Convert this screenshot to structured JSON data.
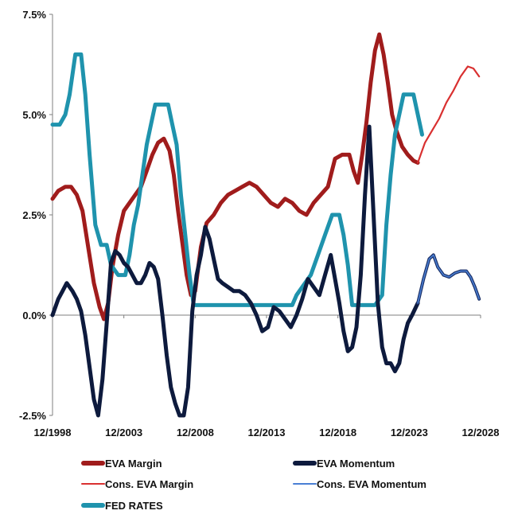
{
  "chart_data": {
    "type": "line",
    "title": "",
    "xlabel": "",
    "ylabel": "",
    "xlim": [
      1998.9,
      2028.9
    ],
    "ylim": [
      -2.5,
      7.5
    ],
    "x_ticks": [
      {
        "value": 1998.9,
        "label": "12/1998"
      },
      {
        "value": 2003.9,
        "label": "12/2003"
      },
      {
        "value": 2008.9,
        "label": "12/2008"
      },
      {
        "value": 2013.9,
        "label": "12/2013"
      },
      {
        "value": 2018.9,
        "label": "12/2018"
      },
      {
        "value": 2023.9,
        "label": "12/2023"
      },
      {
        "value": 2028.9,
        "label": "12/2028"
      }
    ],
    "y_ticks": [
      {
        "value": 7.5,
        "label": "7.5%"
      },
      {
        "value": 5.0,
        "label": "5.0%"
      },
      {
        "value": 2.5,
        "label": "2.5%"
      },
      {
        "value": 0.0,
        "label": "0.0%"
      },
      {
        "value": -2.5,
        "label": "-2.5%"
      }
    ],
    "series": [
      {
        "name": "EVA Margin",
        "color": "#a01c1c",
        "weight": "thick",
        "x": [
          1998.9,
          1999.3,
          1999.8,
          2000.2,
          2000.6,
          2001.0,
          2001.4,
          2001.8,
          2002.2,
          2002.5,
          2002.8,
          2003.1,
          2003.5,
          2003.9,
          2004.3,
          2004.7,
          2005.1,
          2005.5,
          2005.9,
          2006.3,
          2006.7,
          2007.1,
          2007.4,
          2007.7,
          2008.0,
          2008.3,
          2008.6,
          2008.9,
          2009.3,
          2009.7,
          2010.2,
          2010.7,
          2011.2,
          2011.7,
          2012.2,
          2012.7,
          2013.2,
          2013.7,
          2014.2,
          2014.7,
          2015.2,
          2015.7,
          2016.2,
          2016.7,
          2017.2,
          2017.7,
          2018.2,
          2018.7,
          2019.2,
          2019.7,
          2020.0,
          2020.3,
          2020.6,
          2020.9,
          2021.2,
          2021.5,
          2021.8,
          2022.1,
          2022.4,
          2022.7,
          2023.0,
          2023.4,
          2023.8,
          2024.2,
          2024.5
        ],
        "y": [
          2.9,
          3.1,
          3.2,
          3.2,
          3.0,
          2.6,
          1.7,
          0.8,
          0.2,
          -0.1,
          0.3,
          1.2,
          2.0,
          2.6,
          2.8,
          3.0,
          3.2,
          3.6,
          4.0,
          4.3,
          4.4,
          4.1,
          3.5,
          2.6,
          1.8,
          1.0,
          0.5,
          0.6,
          1.7,
          2.3,
          2.5,
          2.8,
          3.0,
          3.1,
          3.2,
          3.3,
          3.2,
          3.0,
          2.8,
          2.7,
          2.9,
          2.8,
          2.6,
          2.5,
          2.8,
          3.0,
          3.2,
          3.9,
          4.0,
          4.0,
          3.6,
          3.3,
          4.0,
          4.8,
          5.8,
          6.6,
          7.0,
          6.5,
          5.8,
          5.0,
          4.6,
          4.2,
          4.0,
          3.85,
          3.8
        ]
      },
      {
        "name": "EVA Momentum",
        "color": "#0d1a3d",
        "weight": "thick",
        "x": [
          1998.9,
          1999.3,
          1999.6,
          1999.9,
          2000.3,
          2000.6,
          2000.9,
          2001.2,
          2001.5,
          2001.8,
          2002.1,
          2002.4,
          2002.7,
          2003.0,
          2003.3,
          2003.6,
          2003.9,
          2004.2,
          2004.5,
          2004.8,
          2005.1,
          2005.4,
          2005.7,
          2006.0,
          2006.3,
          2006.6,
          2006.9,
          2007.2,
          2007.5,
          2007.8,
          2008.1,
          2008.4,
          2008.7,
          2009.0,
          2009.3,
          2009.6,
          2009.9,
          2010.2,
          2010.5,
          2010.8,
          2011.2,
          2011.6,
          2012.0,
          2012.4,
          2012.8,
          2013.2,
          2013.6,
          2014.0,
          2014.4,
          2014.8,
          2015.2,
          2015.6,
          2016.0,
          2016.4,
          2016.8,
          2017.2,
          2017.6,
          2018.0,
          2018.4,
          2018.7,
          2019.0,
          2019.3,
          2019.6,
          2019.9,
          2020.2,
          2020.5,
          2020.8,
          2021.1,
          2021.4,
          2021.7,
          2022.0,
          2022.3,
          2022.6,
          2022.9,
          2023.2,
          2023.5,
          2023.8,
          2024.1,
          2024.5
        ],
        "y": [
          0.0,
          0.4,
          0.6,
          0.8,
          0.6,
          0.4,
          0.1,
          -0.5,
          -1.3,
          -2.1,
          -2.5,
          -1.6,
          -0.2,
          1.3,
          1.6,
          1.5,
          1.3,
          1.2,
          1.0,
          0.8,
          0.8,
          1.0,
          1.3,
          1.2,
          0.9,
          0.0,
          -1.0,
          -1.8,
          -2.2,
          -2.5,
          -2.5,
          -1.8,
          0.1,
          1.0,
          1.5,
          2.2,
          1.9,
          1.4,
          0.9,
          0.8,
          0.7,
          0.6,
          0.6,
          0.5,
          0.3,
          0.0,
          -0.4,
          -0.3,
          0.2,
          0.1,
          -0.1,
          -0.3,
          0.0,
          0.4,
          0.9,
          0.7,
          0.5,
          1.0,
          1.5,
          0.9,
          0.3,
          -0.4,
          -0.9,
          -0.8,
          -0.3,
          1.0,
          3.0,
          4.7,
          2.5,
          0.3,
          -0.8,
          -1.2,
          -1.2,
          -1.4,
          -1.2,
          -0.6,
          -0.2,
          0.0,
          0.3
        ]
      },
      {
        "name": "Cons. EVA Margin",
        "color": "#d93030",
        "weight": "thin",
        "x": [
          2024.5,
          2025.0,
          2025.5,
          2026.0,
          2026.5,
          2027.0,
          2027.5,
          2028.0,
          2028.4,
          2028.8
        ],
        "y": [
          3.8,
          4.3,
          4.6,
          4.9,
          5.3,
          5.6,
          5.95,
          6.2,
          6.15,
          5.95
        ]
      },
      {
        "name": "Cons. EVA Momentum",
        "color": "#4a7fd4",
        "weight": "thin",
        "x": [
          2024.5,
          2024.9,
          2025.3,
          2025.6,
          2025.9,
          2026.3,
          2026.7,
          2027.1,
          2027.5,
          2027.9,
          2028.2,
          2028.5,
          2028.8
        ],
        "y": [
          0.3,
          0.9,
          1.4,
          1.5,
          1.2,
          1.0,
          0.95,
          1.05,
          1.1,
          1.1,
          0.95,
          0.7,
          0.4
        ]
      },
      {
        "name": "FED RATES",
        "color": "#1f93ad",
        "weight": "thick",
        "x": [
          1998.9,
          1999.4,
          1999.8,
          2000.1,
          2000.5,
          2000.9,
          2001.2,
          2001.5,
          2001.9,
          2002.3,
          2002.7,
          2003.0,
          2003.5,
          2004.0,
          2004.3,
          2004.6,
          2004.9,
          2005.2,
          2005.5,
          2005.8,
          2006.1,
          2006.5,
          2007.0,
          2007.3,
          2007.6,
          2007.9,
          2008.2,
          2008.5,
          2008.8,
          2015.7,
          2016.0,
          2016.5,
          2017.0,
          2017.5,
          2018.0,
          2018.5,
          2019.0,
          2019.3,
          2019.6,
          2019.9,
          2020.2,
          2021.0,
          2021.5,
          2022.0,
          2022.3,
          2022.6,
          2022.9,
          2023.2,
          2023.5,
          2023.8,
          2024.2,
          2024.8
        ],
        "y": [
          4.75,
          4.75,
          5.0,
          5.5,
          6.5,
          6.5,
          5.5,
          4.0,
          2.25,
          1.75,
          1.75,
          1.25,
          1.0,
          1.0,
          1.5,
          2.25,
          2.75,
          3.5,
          4.25,
          4.75,
          5.25,
          5.25,
          5.25,
          4.75,
          4.25,
          3.0,
          2.0,
          1.0,
          0.25,
          0.25,
          0.5,
          0.75,
          1.0,
          1.5,
          2.0,
          2.5,
          2.5,
          2.0,
          1.25,
          0.25,
          0.25,
          0.25,
          0.25,
          0.5,
          2.25,
          3.5,
          4.5,
          5.0,
          5.5,
          5.5,
          5.5,
          4.5
        ]
      }
    ],
    "legend": {
      "placement": "bottom",
      "entries": [
        "EVA Margin",
        "EVA Momentum",
        "Cons. EVA Margin",
        "Cons. EVA Momentum",
        "FED RATES"
      ]
    }
  }
}
